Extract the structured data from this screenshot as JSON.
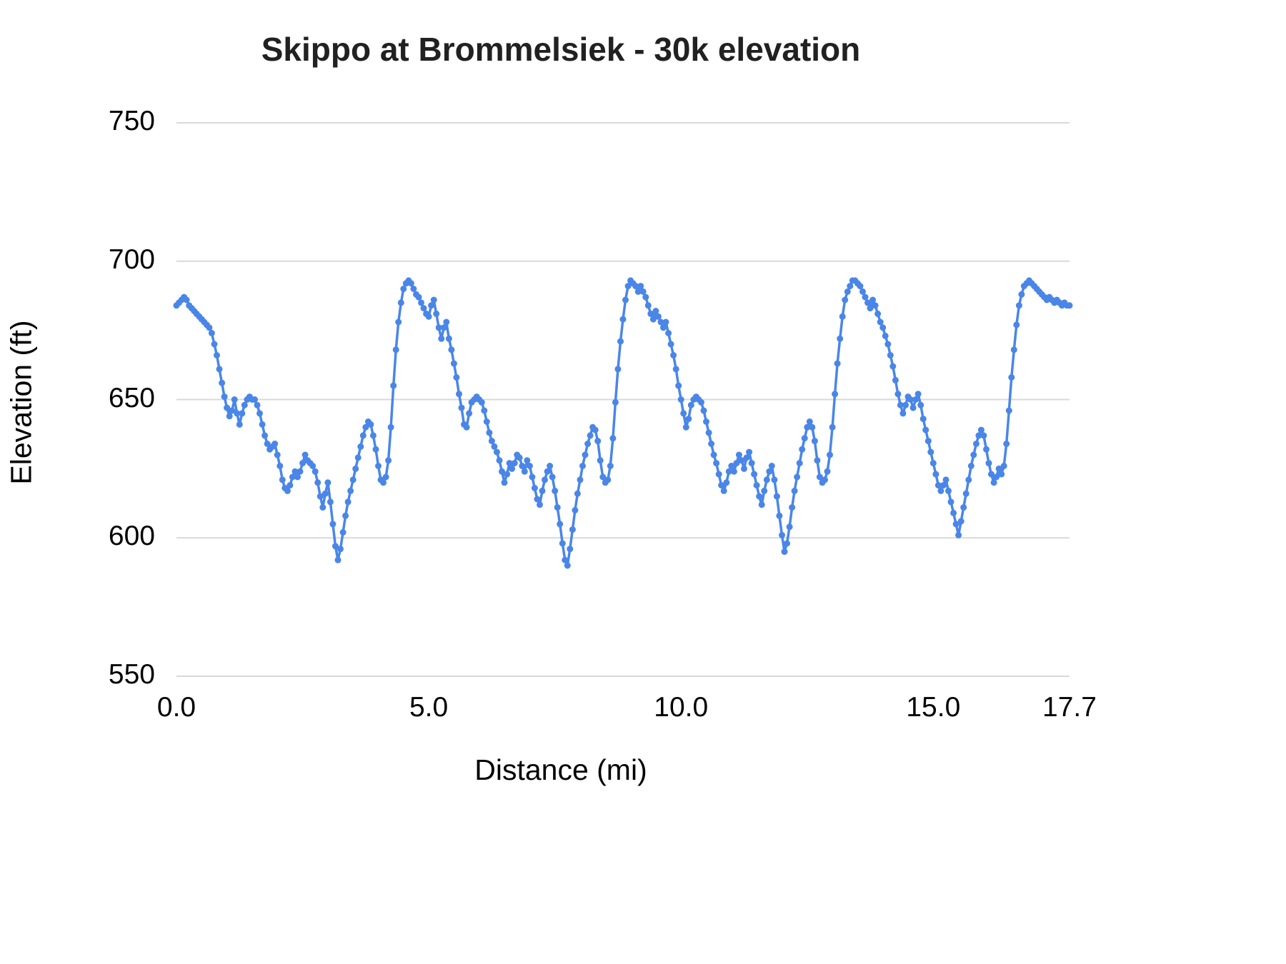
{
  "chart_data": {
    "type": "line",
    "title": "Skippo at Brommelsiek - 30k elevation",
    "xlabel": "Distance (mi)",
    "ylabel": "Elevation (ft)",
    "legend": "none",
    "grid": "horizontal",
    "xlim": [
      0,
      17.7
    ],
    "ylim": [
      550,
      750
    ],
    "xticks": [
      0,
      5,
      10,
      15,
      17.7
    ],
    "xtick_labels": [
      "0.0",
      "5.0",
      "10.0",
      "15.0",
      "17.7"
    ],
    "yticks": [
      550,
      600,
      650,
      700,
      750
    ],
    "ytick_labels": [
      "550",
      "600",
      "650",
      "700",
      "750"
    ],
    "x_start": 0.0,
    "x_step": 0.05,
    "x_end": 17.7,
    "series": [
      {
        "name": "Elevation",
        "color": "#4a86e8",
        "marker": "circle",
        "y": [
          684,
          685,
          686,
          687,
          686,
          684,
          683,
          682,
          681,
          680,
          679,
          678,
          677,
          676,
          674,
          670,
          666,
          661,
          656,
          651,
          647,
          644,
          646,
          650,
          645,
          641,
          645,
          648,
          650,
          651,
          650,
          650,
          648,
          645,
          641,
          637,
          634,
          632,
          633,
          634,
          630,
          626,
          621,
          618,
          617,
          619,
          622,
          624,
          622,
          624,
          627,
          630,
          628,
          627,
          626,
          624,
          620,
          615,
          611,
          616,
          620,
          613,
          605,
          597,
          592,
          596,
          602,
          608,
          613,
          617,
          621,
          625,
          629,
          633,
          637,
          640,
          642,
          641,
          637,
          632,
          626,
          621,
          620,
          622,
          628,
          640,
          655,
          668,
          678,
          685,
          690,
          692,
          693,
          692,
          690,
          688,
          687,
          685,
          683,
          681,
          680,
          684,
          686,
          681,
          676,
          672,
          676,
          678,
          672,
          668,
          663,
          658,
          652,
          647,
          641,
          640,
          645,
          649,
          650,
          651,
          650,
          649,
          646,
          642,
          638,
          635,
          633,
          631,
          628,
          624,
          620,
          623,
          627,
          625,
          627,
          630,
          629,
          626,
          624,
          628,
          626,
          622,
          618,
          614,
          612,
          617,
          621,
          624,
          626,
          622,
          617,
          611,
          605,
          598,
          592,
          590,
          596,
          603,
          610,
          616,
          621,
          626,
          630,
          634,
          637,
          640,
          639,
          635,
          628,
          622,
          620,
          621,
          626,
          636,
          649,
          661,
          671,
          679,
          686,
          691,
          693,
          692,
          691,
          689,
          691,
          689,
          687,
          684,
          681,
          679,
          682,
          680,
          678,
          676,
          678,
          674,
          670,
          666,
          661,
          655,
          650,
          645,
          640,
          643,
          648,
          650,
          651,
          650,
          649,
          646,
          642,
          638,
          634,
          630,
          627,
          623,
          619,
          617,
          620,
          624,
          626,
          624,
          627,
          630,
          628,
          625,
          629,
          631,
          627,
          623,
          619,
          615,
          612,
          617,
          621,
          624,
          626,
          621,
          615,
          608,
          601,
          595,
          598,
          604,
          611,
          617,
          622,
          627,
          632,
          636,
          640,
          642,
          640,
          635,
          628,
          622,
          620,
          621,
          624,
          630,
          640,
          652,
          663,
          672,
          680,
          686,
          689,
          691,
          693,
          693,
          692,
          691,
          689,
          687,
          685,
          683,
          686,
          684,
          681,
          678,
          676,
          673,
          670,
          666,
          662,
          657,
          652,
          648,
          645,
          648,
          651,
          650,
          647,
          650,
          652,
          648,
          643,
          639,
          635,
          631,
          627,
          623,
          619,
          617,
          619,
          621,
          617,
          613,
          609,
          605,
          601,
          606,
          611,
          616,
          621,
          626,
          630,
          634,
          637,
          639,
          637,
          632,
          627,
          623,
          620,
          622,
          625,
          623,
          626,
          634,
          646,
          658,
          668,
          677,
          684,
          688,
          691,
          692,
          693,
          692,
          691,
          690,
          689,
          688,
          687,
          686,
          687,
          686,
          685,
          686,
          685,
          684,
          685,
          684,
          684
        ]
      }
    ]
  },
  "colors": {
    "background": "#ffffff",
    "gridline": "#d9d9d9",
    "text": "#000000",
    "title": "#212121",
    "series": "#4a86e8"
  }
}
